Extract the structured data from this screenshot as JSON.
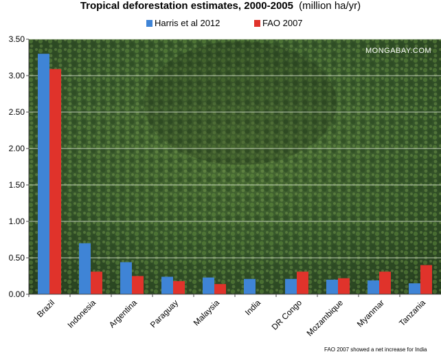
{
  "chart_data": {
    "type": "bar",
    "title": "Tropical deforestation estimates, 2000-2005",
    "title_unit": "(million ha/yr)",
    "categories": [
      "Brazil",
      "Indonesia",
      "Argentina",
      "Paraguay",
      "Malaysia",
      "India",
      "DR Congo",
      "Mozambique",
      "Myanmar",
      "Tanzania"
    ],
    "series": [
      {
        "name": "Harris et al 2012",
        "color": "#3f84d6",
        "values": [
          3.3,
          0.7,
          0.44,
          0.24,
          0.23,
          0.21,
          0.21,
          0.2,
          0.19,
          0.15
        ]
      },
      {
        "name": "FAO 2007",
        "color": "#e0332b",
        "values": [
          3.09,
          0.31,
          0.25,
          0.18,
          0.14,
          null,
          0.31,
          0.22,
          0.31,
          0.4
        ]
      }
    ],
    "yticks": [
      "0.00",
      "0.50",
      "1.00",
      "1.50",
      "2.00",
      "2.50",
      "3.00",
      "3.50"
    ],
    "ylim": [
      0,
      3.5
    ],
    "xlabel": "",
    "ylabel": "",
    "grid": true,
    "legend_position": "top",
    "watermark": "MONGABAY.COM",
    "footnote": "FAO 2007 showed a net increase for India",
    "background": "aerial photo of tropical rainforest canopy"
  }
}
